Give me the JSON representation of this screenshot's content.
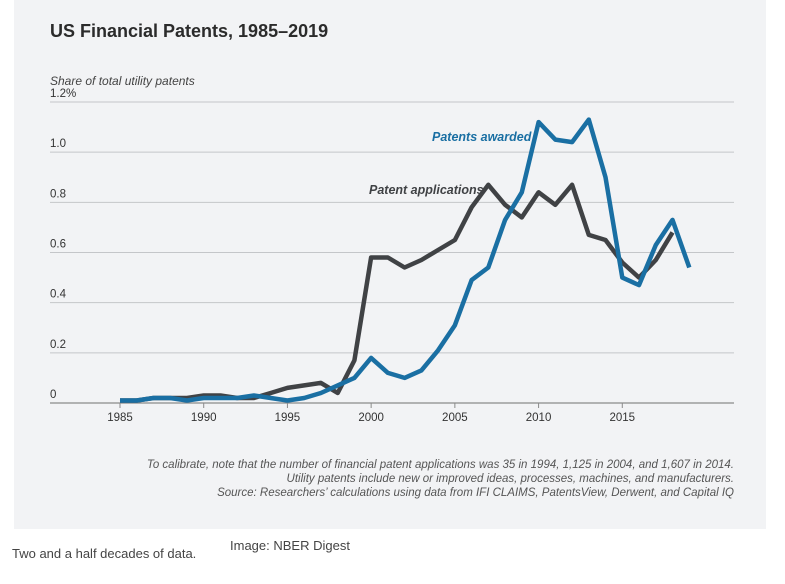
{
  "chart_data": {
    "type": "line",
    "title": "US Financial Patents, 1985–2019",
    "ylabel": "Share of total utility patents",
    "xlim": [
      1985,
      2020
    ],
    "ylim": [
      0,
      1.2
    ],
    "x_ticks": [
      1985,
      1990,
      1995,
      2000,
      2005,
      2010,
      2015
    ],
    "y_ticks": [
      {
        "value": 0,
        "label": "0"
      },
      {
        "value": 0.2,
        "label": "0.2"
      },
      {
        "value": 0.4,
        "label": "0.4"
      },
      {
        "value": 0.6,
        "label": "0.6"
      },
      {
        "value": 0.8,
        "label": "0.8"
      },
      {
        "value": 1.0,
        "label": "1.0"
      },
      {
        "value": 1.2,
        "label": "1.2%"
      }
    ],
    "grid": "horizontal",
    "series": [
      {
        "name": "Patent applications",
        "color": "#404245",
        "x": [
          1985,
          1986,
          1987,
          1988,
          1989,
          1990,
          1991,
          1992,
          1993,
          1994,
          1995,
          1996,
          1997,
          1998,
          1999,
          2000,
          2001,
          2002,
          2003,
          2004,
          2005,
          2006,
          2007,
          2008,
          2009,
          2010,
          2011,
          2012,
          2013,
          2014,
          2015,
          2016,
          2017,
          2018
        ],
        "y": [
          0.01,
          0.01,
          0.02,
          0.02,
          0.02,
          0.03,
          0.03,
          0.02,
          0.02,
          0.04,
          0.06,
          0.07,
          0.08,
          0.04,
          0.17,
          0.58,
          0.58,
          0.54,
          0.57,
          0.61,
          0.65,
          0.78,
          0.87,
          0.79,
          0.74,
          0.84,
          0.79,
          0.87,
          0.67,
          0.65,
          0.56,
          0.5,
          0.57,
          0.68
        ]
      },
      {
        "name": "Patents awarded",
        "color": "#1a6fa3",
        "x": [
          1985,
          1986,
          1987,
          1988,
          1989,
          1990,
          1991,
          1992,
          1993,
          1994,
          1995,
          1996,
          1997,
          1998,
          1999,
          2000,
          2001,
          2002,
          2003,
          2004,
          2005,
          2006,
          2007,
          2008,
          2009,
          2010,
          2011,
          2012,
          2013,
          2014,
          2015,
          2016,
          2017,
          2018,
          2019
        ],
        "y": [
          0.01,
          0.01,
          0.02,
          0.02,
          0.01,
          0.02,
          0.02,
          0.02,
          0.03,
          0.02,
          0.01,
          0.02,
          0.04,
          0.07,
          0.1,
          0.18,
          0.12,
          0.1,
          0.13,
          0.21,
          0.31,
          0.49,
          0.54,
          0.73,
          0.84,
          1.12,
          1.05,
          1.04,
          1.13,
          0.9,
          0.5,
          0.47,
          0.63,
          0.73,
          0.54
        ]
      }
    ],
    "annotations": [
      "To calibrate, note that the number of financial patent applications was 35 in 1994, 1,125 in 2004, and 1,607 in 2014.",
      "Utility patents include new or improved ideas, processes, machines, and manufacturers.",
      "Source: Researchers’ calculations using data from IFI CLAIMS, PatentsView, Derwent, and Capital IQ"
    ]
  },
  "caption": "Two and a half decades of data.",
  "credit": "Image: NBER Digest"
}
